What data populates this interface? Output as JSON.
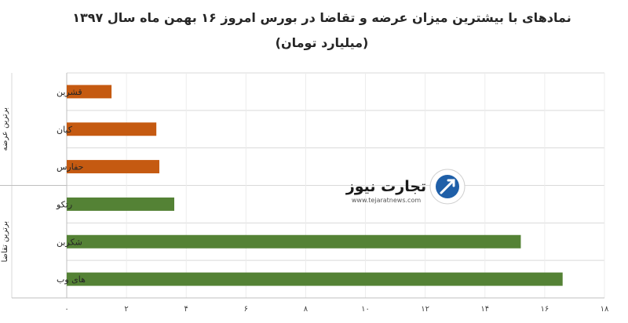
{
  "chart_data": {
    "type": "bar",
    "orientation": "horizontal",
    "title": "نمادهای با بیشترین میزان عرضه و تقاضا در بورس امروز ۱۶ بهمن ماه سال ۱۳۹۷",
    "subtitle": "(میلیارد تومان)",
    "xlim": [
      0,
      18
    ],
    "x_ticks": [
      {
        "value": 0,
        "label": "۰"
      },
      {
        "value": 2,
        "label": "۲"
      },
      {
        "value": 4,
        "label": "۴"
      },
      {
        "value": 6,
        "label": "۶"
      },
      {
        "value": 8,
        "label": "۸"
      },
      {
        "value": 10,
        "label": "۱۰"
      },
      {
        "value": 12,
        "label": "۱۲"
      },
      {
        "value": 14,
        "label": "۱۴"
      },
      {
        "value": 16,
        "label": "۱۶"
      },
      {
        "value": 18,
        "label": "۱۸"
      }
    ],
    "grid": true,
    "groups": [
      {
        "name": "برترین عرضه",
        "color": "#c55a11",
        "items": [
          {
            "label": "قشرین",
            "value": 1.5
          },
          {
            "label": "کیان",
            "value": 3.0
          },
          {
            "label": "حفارس",
            "value": 3.1
          }
        ]
      },
      {
        "name": "برترین تقاضا",
        "color": "#548235",
        "items": [
          {
            "label": "رتکو",
            "value": 3.6
          },
          {
            "label": "شکربن",
            "value": 15.2
          },
          {
            "label": "های وب",
            "value": 16.6
          }
        ]
      }
    ]
  },
  "watermark": {
    "brand": "تجارت نیوز",
    "url": "www.tejaratnews.com",
    "logo_color": "#1f5fa8"
  }
}
